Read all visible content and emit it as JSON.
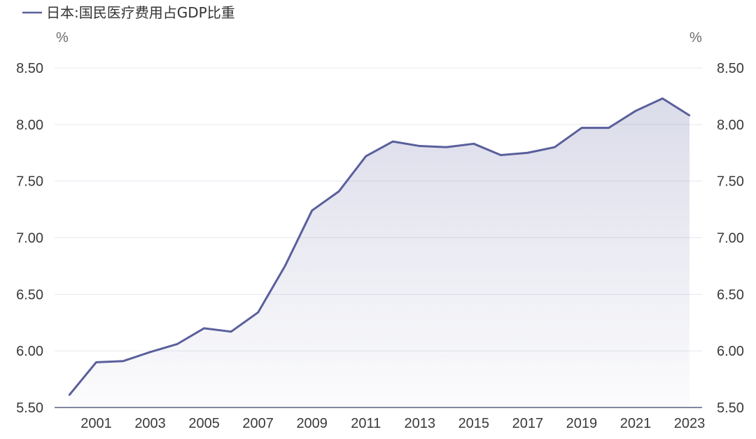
{
  "chart_data": {
    "type": "area",
    "title": "",
    "legend": {
      "position": "top-left"
    },
    "series": [
      {
        "name": "日本:国民医疗费用占GDP比重",
        "color": "#5a5f9c",
        "x": [
          2000,
          2001,
          2002,
          2003,
          2004,
          2005,
          2006,
          2007,
          2008,
          2009,
          2010,
          2011,
          2012,
          2013,
          2014,
          2015,
          2016,
          2017,
          2018,
          2019,
          2020,
          2021,
          2022,
          2023
        ],
        "values": [
          5.61,
          5.9,
          5.91,
          5.99,
          6.06,
          6.2,
          6.17,
          6.34,
          6.75,
          7.24,
          7.41,
          7.72,
          7.85,
          7.81,
          7.8,
          7.83,
          7.73,
          7.75,
          7.8,
          7.97,
          7.97,
          8.12,
          8.23,
          8.08
        ]
      }
    ],
    "x_ticks": [
      "2001",
      "2003",
      "2005",
      "2007",
      "2009",
      "2011",
      "2013",
      "2015",
      "2017",
      "2019",
      "2021",
      "2023"
    ],
    "y_left": {
      "unit": "%",
      "ylim": [
        5.5,
        8.5
      ],
      "ticks": [
        "5.50",
        "6.00",
        "6.50",
        "7.00",
        "7.50",
        "8.00",
        "8.50"
      ]
    },
    "y_right": {
      "unit": "%",
      "ylim": [
        5.5,
        8.5
      ],
      "ticks": [
        "5.50",
        "6.00",
        "6.50",
        "7.00",
        "7.50",
        "8.00",
        "8.50"
      ]
    },
    "grid": true
  }
}
